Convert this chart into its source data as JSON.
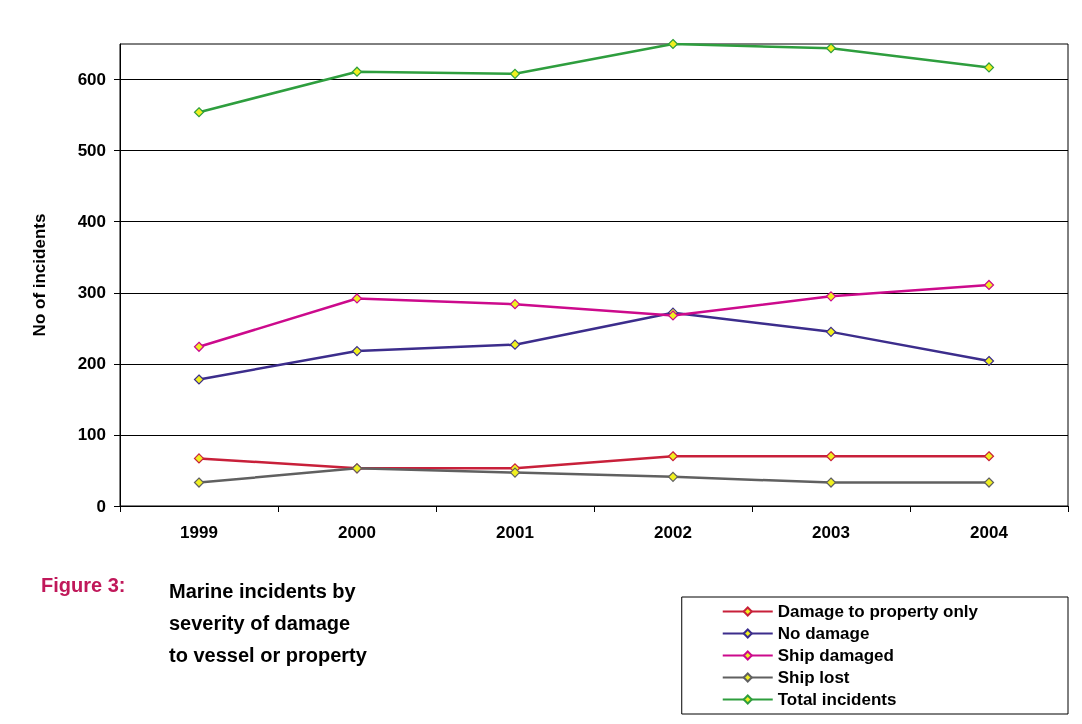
{
  "chart_data": {
    "type": "line",
    "title": "Figure 3:",
    "subtitle": "Marine incidents by\nseverity of damage\nto vessel or property",
    "ylabel": "No of incidents",
    "categories": [
      "1999",
      "2000",
      "2001",
      "2002",
      "2003",
      "2004"
    ],
    "ylim": [
      0,
      650
    ],
    "yticks": [
      0,
      100,
      200,
      300,
      400,
      500,
      600
    ],
    "grid": "y",
    "legend": "bottom right",
    "marker": "diamond",
    "line_style": "solid",
    "series": [
      {
        "name": "Damage to property only",
        "color": "#c8203a",
        "values": [
          67,
          53,
          53,
          70,
          70,
          70
        ]
      },
      {
        "name": "No damage",
        "color": "#3c2d8c",
        "values": [
          178,
          218,
          227,
          272,
          245,
          204
        ]
      },
      {
        "name": "Ship damaged",
        "color": "#cc0a8c",
        "values": [
          224,
          292,
          284,
          268,
          295,
          311
        ]
      },
      {
        "name": "Ship lost",
        "color": "#606060",
        "values": [
          33,
          53,
          47,
          41,
          33,
          33
        ]
      },
      {
        "name": "Total incidents",
        "color": "#2e9e3e",
        "values": [
          554,
          611,
          608,
          650,
          644,
          617
        ]
      }
    ]
  }
}
